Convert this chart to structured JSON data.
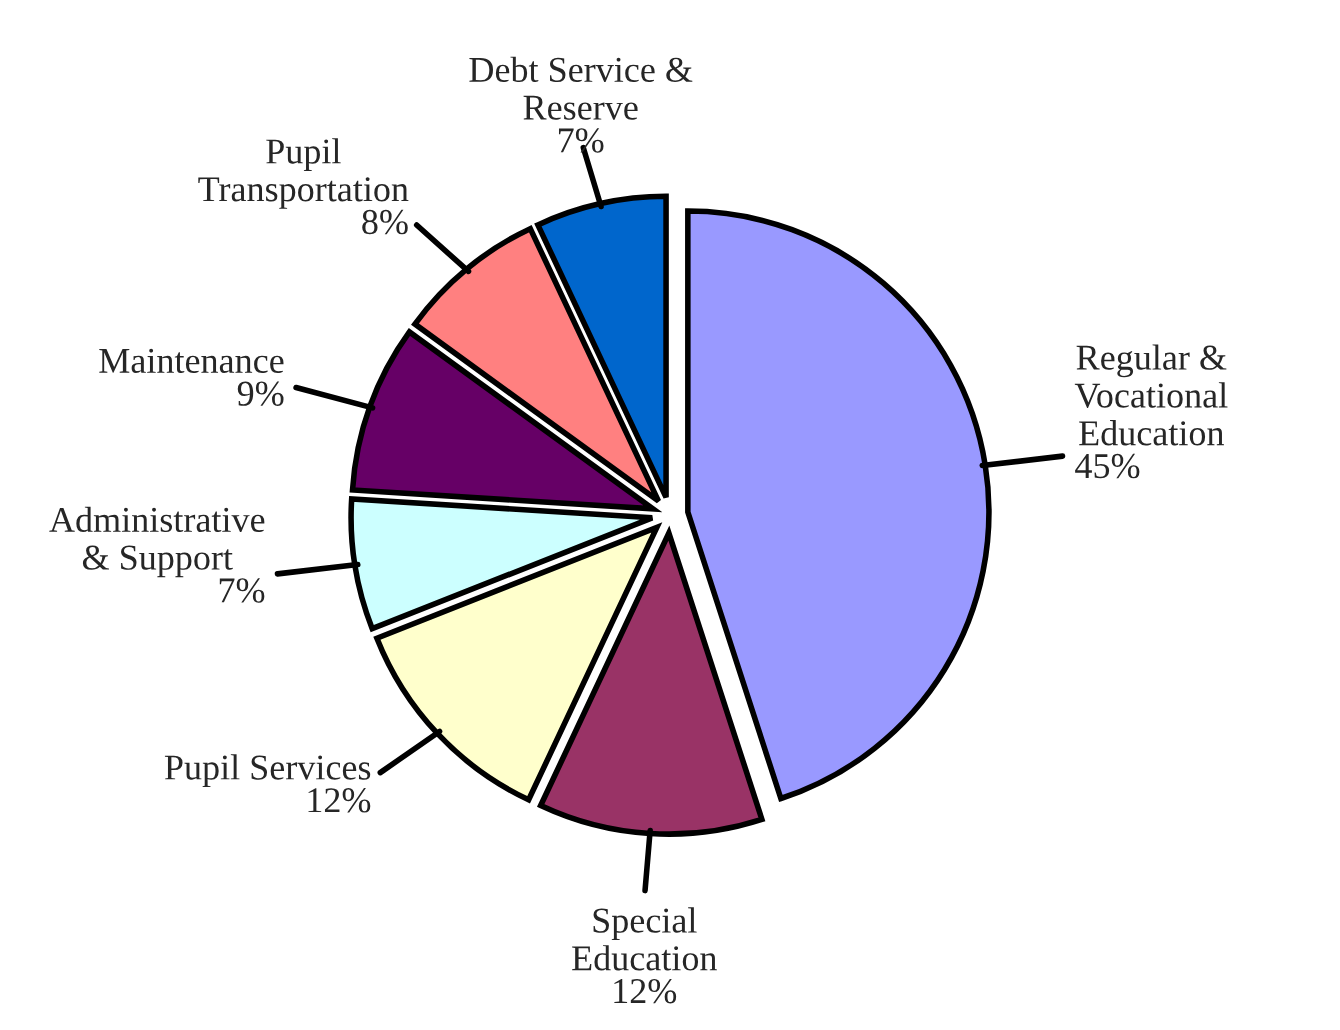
{
  "chart_data": {
    "type": "pie",
    "categories": [
      "Regular &\nVocational\nEducation",
      "Special\nEducation",
      "Pupil Services",
      "Administrative\n& Support",
      "Maintenance",
      "Pupil\nTransportation",
      "Debt Service &\nReserve"
    ],
    "values": [
      45,
      12,
      12,
      7,
      9,
      8,
      7
    ],
    "colors": [
      "#9999ff",
      "#993366",
      "#ffffcc",
      "#ccffff",
      "#660066",
      "#ff8080",
      "#0066cc"
    ],
    "value_labels": [
      "45%",
      "12%",
      "12%",
      "7%",
      "9%",
      "8%",
      "7%"
    ]
  }
}
